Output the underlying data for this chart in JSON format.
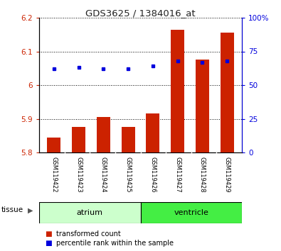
{
  "title": "GDS3625 / 1384016_at",
  "samples": [
    "GSM119422",
    "GSM119423",
    "GSM119424",
    "GSM119425",
    "GSM119426",
    "GSM119427",
    "GSM119428",
    "GSM119429"
  ],
  "transformed_count": [
    5.845,
    5.875,
    5.905,
    5.875,
    5.915,
    6.165,
    6.075,
    6.155
  ],
  "percentile_rank": [
    62,
    63,
    62,
    62,
    64,
    68,
    67,
    68
  ],
  "bar_bottom": 5.8,
  "ylim_left": [
    5.8,
    6.2
  ],
  "ylim_right": [
    0,
    100
  ],
  "yticks_left": [
    5.8,
    5.9,
    6.0,
    6.1,
    6.2
  ],
  "yticks_right": [
    0,
    25,
    50,
    75,
    100
  ],
  "bar_color": "#cc2200",
  "dot_color": "#0000dd",
  "atrium_color": "#ccffcc",
  "ventricle_color": "#44ee44",
  "tissue_border_color": "#000000",
  "tissue_label": "tissue",
  "legend_bar_label": "transformed count",
  "legend_dot_label": "percentile rank within the sample",
  "tick_color_left": "#cc2200",
  "tick_color_right": "#0000dd",
  "grid_color": "#000000",
  "bg_color": "#ffffff",
  "xlabels_bg": "#cccccc",
  "atrium_count": 4,
  "ventricle_count": 4
}
